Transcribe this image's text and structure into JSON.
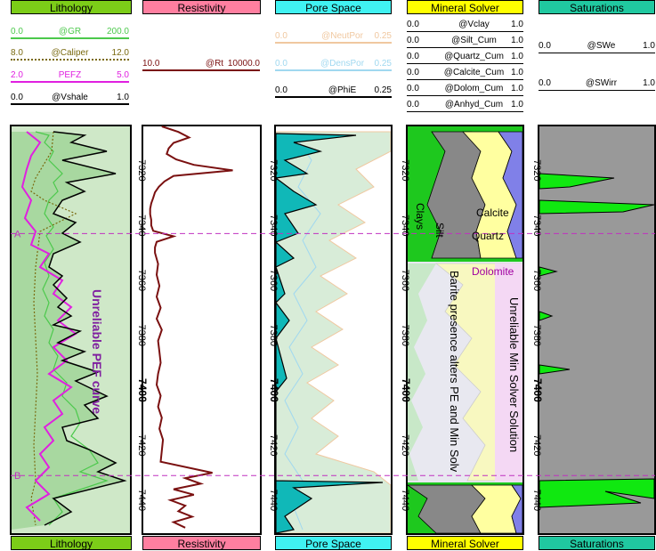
{
  "tracks": [
    {
      "id": "lithology",
      "title": "Lithology",
      "color": "#7ccd18"
    },
    {
      "id": "resistivity",
      "title": "Resistivity",
      "color": "#ff7fa0"
    },
    {
      "id": "pore",
      "title": "Pore Space",
      "color": "#40f2f2"
    },
    {
      "id": "mineral",
      "title": "Mineral Solver",
      "color": "#ffff00"
    },
    {
      "id": "saturations",
      "title": "Saturations",
      "color": "#20c8a0"
    }
  ],
  "lith_curves": [
    {
      "min": "0.0",
      "name": "@GR",
      "max": "200.0",
      "color": "#4cc94c"
    },
    {
      "min": "8.0",
      "name": "@Caliper",
      "max": "12.0",
      "color": "#7a6a10"
    },
    {
      "min": "2.0",
      "name": "PEFZ",
      "max": "5.0",
      "color": "#e020e0"
    },
    {
      "min": "0.0",
      "name": "@Vshale",
      "max": "1.0",
      "color": "#000000"
    }
  ],
  "res_curve": {
    "min": "10.0",
    "name": "@Rt",
    "max": "10000.0",
    "color": "#7a1010"
  },
  "pore_curves": [
    {
      "min": "0.0",
      "name": "@NeutPor",
      "max": "0.25",
      "color": "#f0c8a0"
    },
    {
      "min": "0.0",
      "name": "@DensPor",
      "max": "0.25",
      "color": "#a0d8f0"
    },
    {
      "min": "0.0",
      "name": "@PhiE",
      "max": "0.25",
      "color": "#000000"
    }
  ],
  "min_curves": [
    {
      "min": "0.0",
      "name": "@Vclay",
      "max": "1.0"
    },
    {
      "min": "0.0",
      "name": "@Silt_Cum",
      "max": "1.0"
    },
    {
      "min": "0.0",
      "name": "@Quartz_Cum",
      "max": "1.0"
    },
    {
      "min": "0.0",
      "name": "@Calcite_Cum",
      "max": "1.0"
    },
    {
      "min": "0.0",
      "name": "@Dolom_Cum",
      "max": "1.0"
    },
    {
      "min": "0.0",
      "name": "@Anhyd_Cum",
      "max": "1.0"
    }
  ],
  "sat_curves": [
    {
      "min": "0.0",
      "name": "@SWe",
      "max": "1.0"
    },
    {
      "min": "0.0",
      "name": "@SWirr",
      "max": "1.0"
    }
  ],
  "chart_data": {
    "type": "line",
    "depth_range": [
      7304,
      7452
    ],
    "depth_ticks": [
      7320,
      7340,
      7360,
      7380,
      7400,
      7420,
      7440
    ],
    "bold_tick": 7400,
    "markers": [
      {
        "label": "A",
        "depth": 7343
      },
      {
        "label": "B",
        "depth": 7431
      }
    ],
    "annotations": {
      "lith": "Unreliable PEF curve",
      "min_left": "Barite presence alters PE and Min Solv",
      "min_right": "Unreliable Min Solver Solution",
      "clays": "Clays",
      "silt": "Silt",
      "calcite": "Calcite",
      "quartz": "Quartz",
      "dolomite": "Dolomite"
    },
    "series": [
      {
        "name": "@Rt",
        "depth": [
          7304,
          7306,
          7308,
          7310,
          7312,
          7314,
          7316,
          7318,
          7320,
          7322,
          7324,
          7326,
          7328,
          7330,
          7332,
          7334,
          7336,
          7338,
          7340,
          7342,
          7344,
          7346,
          7348,
          7350,
          7354,
          7358,
          7362,
          7366,
          7370,
          7374,
          7378,
          7382,
          7386,
          7390,
          7394,
          7398,
          7402,
          7406,
          7410,
          7414,
          7418,
          7422,
          7426,
          7430,
          7432,
          7434,
          7436,
          7438,
          7440,
          7442,
          7444,
          7446,
          7448,
          7450
        ],
        "values": [
          30,
          80,
          150,
          60,
          45,
          40,
          70,
          200,
          2000,
          60,
          35,
          25,
          20,
          18,
          16,
          15,
          15,
          16,
          16,
          18,
          60,
          22,
          20,
          20,
          24,
          22,
          26,
          22,
          28,
          22,
          30,
          24,
          26,
          28,
          24,
          22,
          28,
          24,
          30,
          26,
          32,
          30,
          28,
          600,
          120,
          300,
          60,
          200,
          50,
          120,
          80,
          180,
          60,
          120
        ]
      }
    ]
  }
}
